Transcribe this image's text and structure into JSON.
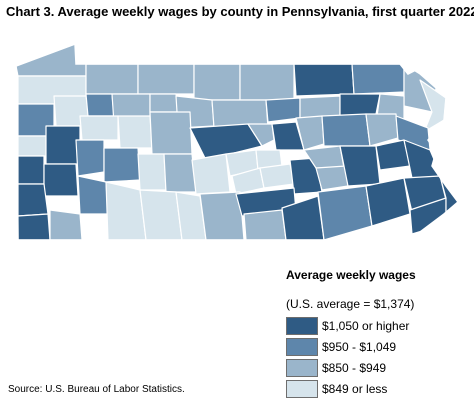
{
  "title": "Chart 3. Average weekly wages by county in Pennsylvania, first quarter 2022",
  "legend": {
    "title": "Average weekly wages",
    "subtitle": "(U.S. average = $1,374)",
    "items": [
      {
        "label": "$1,050 or higher",
        "color": "#2f5b84"
      },
      {
        "label": "$950 - $1,049",
        "color": "#5e86ab"
      },
      {
        "label": "$850 - $949",
        "color": "#9ab5cb"
      },
      {
        "label": "$849 or less",
        "color": "#d6e4ec"
      }
    ]
  },
  "source": "Source: U.S. Bureau of Labor Statistics.",
  "map": {
    "region": "Pennsylvania",
    "unit": "county",
    "border_color": "#ffffff"
  }
}
